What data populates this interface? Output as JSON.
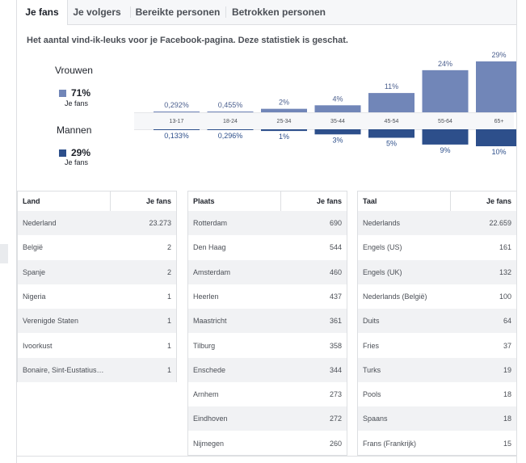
{
  "tabs": [
    {
      "label": "Je fans",
      "active": true
    },
    {
      "label": "Je volgers",
      "active": false
    },
    {
      "label": "Bereikte personen",
      "active": false
    },
    {
      "label": "Betrokken personen",
      "active": false
    }
  ],
  "description": "Het aantal vind-ik-leuks voor je Facebook-pagina. Deze statistiek is geschat.",
  "groups": {
    "women": {
      "title": "Vrouwen",
      "percent": "71%",
      "sub": "Je fans",
      "color": "#7186b8"
    },
    "men": {
      "title": "Mannen",
      "percent": "29%",
      "sub": "Je fans",
      "color": "#2d4f8b"
    }
  },
  "chart_data": {
    "type": "bar",
    "categories": [
      "13-17",
      "18-24",
      "25-34",
      "35-44",
      "45-54",
      "55-64",
      "65+"
    ],
    "series": [
      {
        "name": "Vrouwen",
        "values": [
          0.292,
          0.455,
          2,
          4,
          11,
          24,
          29
        ],
        "labels": [
          "0,292%",
          "0,455%",
          "2%",
          "4%",
          "11%",
          "24%",
          "29%"
        ],
        "color": "#7186b8"
      },
      {
        "name": "Mannen",
        "values": [
          0.133,
          0.296,
          1,
          3,
          5,
          9,
          10
        ],
        "labels": [
          "0,133%",
          "0,296%",
          "1%",
          "3%",
          "5%",
          "9%",
          "10%"
        ],
        "color": "#2d4f8b"
      }
    ],
    "ylim": [
      0,
      29
    ]
  },
  "tables": [
    {
      "col1": "Land",
      "col2": "Je fans",
      "rows": [
        [
          "Nederland",
          "23.273"
        ],
        [
          "België",
          "2"
        ],
        [
          "Spanje",
          "2"
        ],
        [
          "Nigeria",
          "1"
        ],
        [
          "Verenigde Staten",
          "1"
        ],
        [
          "Ivoorkust",
          "1"
        ],
        [
          "Bonaire, Sint-Eustatius…",
          "1"
        ]
      ]
    },
    {
      "col1": "Plaats",
      "col2": "Je fans",
      "rows": [
        [
          "Rotterdam",
          "690"
        ],
        [
          "Den Haag",
          "544"
        ],
        [
          "Amsterdam",
          "460"
        ],
        [
          "Heerlen",
          "437"
        ],
        [
          "Maastricht",
          "361"
        ],
        [
          "Tilburg",
          "358"
        ],
        [
          "Enschede",
          "344"
        ],
        [
          "Arnhem",
          "273"
        ],
        [
          "Eindhoven",
          "272"
        ],
        [
          "Nijmegen",
          "260"
        ]
      ]
    },
    {
      "col1": "Taal",
      "col2": "Je fans",
      "rows": [
        [
          "Nederlands",
          "22.659"
        ],
        [
          "Engels (US)",
          "161"
        ],
        [
          "Engels (UK)",
          "132"
        ],
        [
          "Nederlands (België)",
          "100"
        ],
        [
          "Duits",
          "64"
        ],
        [
          "Fries",
          "37"
        ],
        [
          "Turks",
          "19"
        ],
        [
          "Pools",
          "18"
        ],
        [
          "Spaans",
          "18"
        ],
        [
          "Frans (Frankrijk)",
          "15"
        ]
      ]
    }
  ]
}
